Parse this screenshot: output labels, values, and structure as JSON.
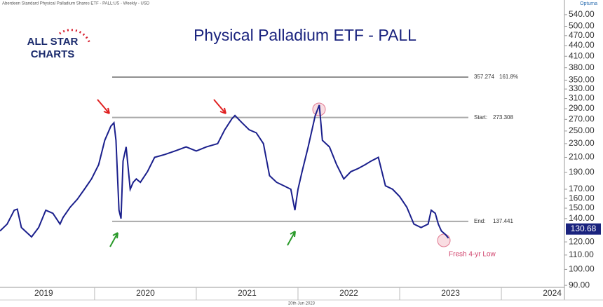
{
  "header": "Aberdeen Standard Physical Palladium Shares ETF - PALL:US - Weekly - USD",
  "brand": "Optuma",
  "logo": [
    "ALL STAR",
    "CHARTS"
  ],
  "footer_date": "20th Jun 2023",
  "chart_data": {
    "type": "line",
    "title": "Physical Palladium ETF - PALL",
    "log_scale": true,
    "grid": false,
    "series": [
      {
        "color": "#1a1f8c",
        "x": [
          2019.07,
          2019.14,
          2019.21,
          2019.24,
          2019.28,
          2019.38,
          2019.45,
          2019.52,
          2019.59,
          2019.66,
          2019.69,
          2019.76,
          2019.83,
          2019.9,
          2019.97,
          2020.04,
          2020.1,
          2020.16,
          2020.19,
          2020.21,
          2020.24,
          2020.26,
          2020.28,
          2020.31,
          2020.35,
          2020.38,
          2020.41,
          2020.45,
          2020.52,
          2020.59,
          2020.69,
          2020.79,
          2020.9,
          2021.0,
          2021.1,
          2021.21,
          2021.28,
          2021.35,
          2021.38,
          2021.45,
          2021.52,
          2021.59,
          2021.66,
          2021.72,
          2021.79,
          2021.86,
          2021.93,
          2021.97,
          2022.0,
          2022.04,
          2022.1,
          2022.17,
          2022.21,
          2022.24,
          2022.31,
          2022.38,
          2022.45,
          2022.52,
          2022.59,
          2022.66,
          2022.72,
          2022.79,
          2022.86,
          2022.93,
          2023.0,
          2023.07,
          2023.14,
          2023.21,
          2023.28,
          2023.31,
          2023.35,
          2023.38,
          2023.41,
          2023.45,
          2023.48
        ],
        "values": [
          129,
          135,
          148,
          149,
          132,
          124,
          132,
          148,
          145,
          135,
          141,
          151,
          159,
          170,
          182,
          200,
          235,
          258,
          264,
          235,
          148,
          140,
          205,
          225,
          170,
          178,
          182,
          178,
          191,
          210,
          214,
          219,
          225,
          219,
          225,
          230,
          252,
          271,
          277,
          264,
          252,
          247,
          230,
          186,
          178,
          174,
          170,
          148,
          170,
          191,
          225,
          277,
          297,
          235,
          225,
          200,
          182,
          191,
          195,
          200,
          205,
          210,
          174,
          170,
          162,
          151,
          135,
          132,
          135,
          148,
          145,
          135,
          129,
          126,
          123
        ]
      }
    ],
    "last_price": 130.68,
    "levels": [
      {
        "value": 357.274,
        "tag": "161.8%"
      },
      {
        "value": 273.308,
        "tag": "Start:"
      },
      {
        "value": 137.441,
        "tag": "End:"
      }
    ],
    "annotation": "Fresh 4-yr Low",
    "xlim": [
      2019.07,
      2024.62
    ],
    "xticks": [
      2020,
      2021,
      2022,
      2023,
      2024
    ],
    "xlabels": [
      2019,
      2020,
      2021,
      2022,
      2023,
      2024
    ],
    "ylim": [
      88.8,
      595
    ],
    "yticks": [
      {
        "value": 540,
        "label": "540.00"
      },
      {
        "value": 500,
        "label": "500.00"
      },
      {
        "value": 470,
        "label": "470.00"
      },
      {
        "value": 440,
        "label": "440.00"
      },
      {
        "value": 410,
        "label": "410.00"
      },
      {
        "value": 380,
        "label": "380.00"
      },
      {
        "value": 350,
        "label": "350.00"
      },
      {
        "value": 330,
        "label": "330.00"
      },
      {
        "value": 310,
        "label": "310.00"
      },
      {
        "value": 290,
        "label": "290.00"
      },
      {
        "value": 270,
        "label": "270.00"
      },
      {
        "value": 250,
        "label": "250.00"
      },
      {
        "value": 230,
        "label": "230.00"
      },
      {
        "value": 210,
        "label": "210.00"
      },
      {
        "value": 190,
        "label": "190.00"
      },
      {
        "value": 170,
        "label": "170.00"
      },
      {
        "value": 160,
        "label": "160.00"
      },
      {
        "value": 150,
        "label": "150.00"
      },
      {
        "value": 140,
        "label": "140.00"
      },
      {
        "value": 120,
        "label": "120.00"
      },
      {
        "value": 110,
        "label": "110.00"
      },
      {
        "value": 100,
        "label": "100.00"
      },
      {
        "value": 90,
        "label": "90.00"
      }
    ]
  }
}
